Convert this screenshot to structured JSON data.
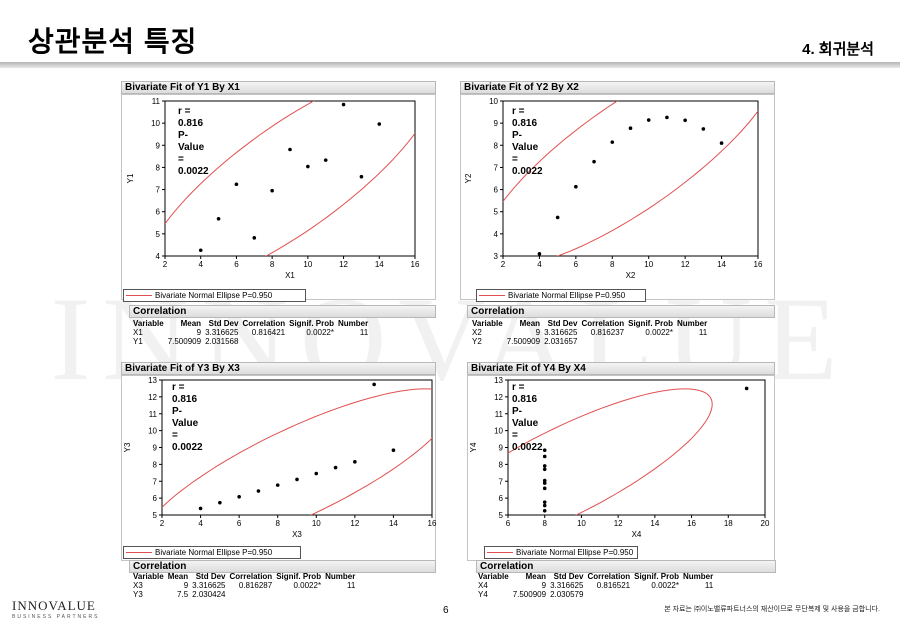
{
  "header": {
    "title": "상관분석 특징",
    "section": "4. 회귀분석"
  },
  "watermark": "INNOVALUE",
  "footer": {
    "logo": "INNOVALUE",
    "logo_sub": "BUSINESS PARTNERS",
    "page_number": "6",
    "copyright": "본 자료는 ㈜이노밸류파트너스의 재산이므로 무단복제 및 사용을 금합니다."
  },
  "correlation_columns": [
    "Variable",
    "Mean",
    "Std Dev",
    "Correlation",
    "Signif. Prob",
    "Number"
  ],
  "panels": [
    {
      "title": "Bivariate Fit of Y1 By X1",
      "r_text": "r = 0.816",
      "p_text": "P-Value = 0.0022",
      "legend": "Bivariate Normal Ellipse P=0.950",
      "corr_title": "Correlation",
      "rows": [
        [
          "X1",
          "9",
          "3.316625",
          "0.816421",
          "0.0022*",
          "11"
        ],
        [
          "Y1",
          "7.500909",
          "2.031568",
          "",
          "",
          ""
        ]
      ]
    },
    {
      "title": "Bivariate Fit of Y2 By X2",
      "r_text": "r = 0.816",
      "p_text": "P-Value = 0.0022",
      "legend": "Bivariate Normal Ellipse P=0.950",
      "corr_title": "Correlation",
      "rows": [
        [
          "X2",
          "9",
          "3.316625",
          "0.816237",
          "0.0022*",
          "11"
        ],
        [
          "Y2",
          "7.500909",
          "2.031657",
          "",
          "",
          ""
        ]
      ]
    },
    {
      "title": "Bivariate Fit of Y3 By X3",
      "r_text": "r = 0.816",
      "p_text": "P-Value = 0.0022",
      "legend": "Bivariate Normal Ellipse P=0.950",
      "corr_title": "Correlation",
      "rows": [
        [
          "X3",
          "9",
          "3.316625",
          "0.816287",
          "0.0022*",
          "11"
        ],
        [
          "Y3",
          "7.5",
          "2.030424",
          "",
          "",
          ""
        ]
      ]
    },
    {
      "title": "Bivariate Fit of Y4 By X4",
      "r_text": "r = 0.816",
      "p_text": "P-Value = 0.0022",
      "legend": "Bivariate Normal Ellipse P=0.950",
      "corr_title": "Correlation",
      "rows": [
        [
          "X4",
          "9",
          "3.316625",
          "0.816521",
          "0.0022*",
          "11"
        ],
        [
          "Y4",
          "7.500909",
          "2.030579",
          "",
          "",
          ""
        ]
      ]
    }
  ],
  "chart_data": [
    {
      "type": "scatter",
      "xlabel": "X1",
      "ylabel": "Y1",
      "xlim": [
        2,
        16
      ],
      "ylim": [
        4,
        11
      ],
      "xticks": [
        2,
        4,
        6,
        8,
        10,
        12,
        14,
        16
      ],
      "yticks": [
        4,
        5,
        6,
        7,
        8,
        9,
        10,
        11
      ],
      "x": [
        4,
        5,
        6,
        7,
        8,
        9,
        10,
        11,
        12,
        13,
        14
      ],
      "y": [
        4.26,
        5.68,
        7.24,
        4.82,
        6.95,
        8.81,
        8.04,
        8.33,
        10.84,
        7.58,
        9.96
      ],
      "color": "#000000",
      "ellipse_color": "#e05050"
    },
    {
      "type": "scatter",
      "xlabel": "X2",
      "ylabel": "Y2",
      "xlim": [
        2,
        16
      ],
      "ylim": [
        3,
        10
      ],
      "xticks": [
        2,
        4,
        6,
        8,
        10,
        12,
        14,
        16
      ],
      "yticks": [
        3,
        4,
        5,
        6,
        7,
        8,
        9,
        10
      ],
      "x": [
        4,
        5,
        6,
        7,
        8,
        9,
        10,
        11,
        12,
        13,
        14
      ],
      "y": [
        3.1,
        4.74,
        6.13,
        7.26,
        8.14,
        8.77,
        9.14,
        9.26,
        9.13,
        8.74,
        8.1
      ],
      "color": "#000000",
      "ellipse_color": "#e05050"
    },
    {
      "type": "scatter",
      "xlabel": "X3",
      "ylabel": "Y3",
      "xlim": [
        2,
        16
      ],
      "ylim": [
        5,
        13
      ],
      "xticks": [
        2,
        4,
        6,
        8,
        10,
        12,
        14,
        16
      ],
      "yticks": [
        5,
        6,
        7,
        8,
        9,
        10,
        11,
        12,
        13
      ],
      "x": [
        4,
        5,
        6,
        7,
        8,
        9,
        10,
        11,
        12,
        13,
        14
      ],
      "y": [
        5.39,
        5.73,
        6.08,
        6.42,
        6.77,
        7.11,
        7.46,
        7.81,
        8.15,
        12.74,
        8.84
      ],
      "color": "#000000",
      "ellipse_color": "#e05050"
    },
    {
      "type": "scatter",
      "xlabel": "X4",
      "ylabel": "Y4",
      "xlim": [
        6,
        20
      ],
      "ylim": [
        5,
        13
      ],
      "xticks": [
        6,
        8,
        10,
        12,
        14,
        16,
        18,
        20
      ],
      "yticks": [
        5,
        6,
        7,
        8,
        9,
        10,
        11,
        12,
        13
      ],
      "x": [
        8,
        8,
        8,
        8,
        8,
        8,
        8,
        19,
        8,
        8,
        8
      ],
      "y": [
        6.58,
        5.76,
        7.71,
        8.84,
        8.47,
        7.04,
        5.25,
        12.5,
        5.56,
        7.91,
        6.89
      ],
      "color": "#000000",
      "ellipse_color": "#e05050"
    }
  ]
}
